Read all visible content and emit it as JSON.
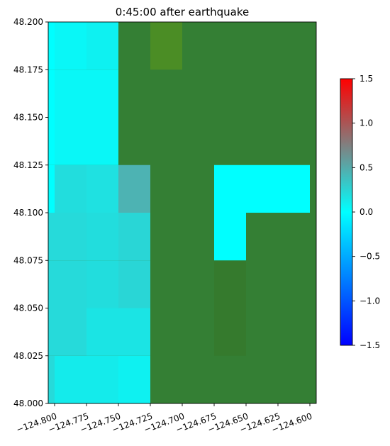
{
  "chart_data": {
    "type": "heatmap",
    "title": "0:45:00 after earthquake",
    "xlabel": "",
    "ylabel": "",
    "xlim": [
      -124.805,
      -124.595
    ],
    "ylim": [
      48.0,
      48.2
    ],
    "x_ticks": [
      -124.8,
      -124.775,
      -124.75,
      -124.725,
      -124.7,
      -124.675,
      -124.65,
      -124.625,
      -124.6
    ],
    "x_tick_labels": [
      "−124.800",
      "−124.775",
      "−124.750",
      "−124.725",
      "−124.700",
      "−124.675",
      "−124.650",
      "−124.625",
      "−124.600"
    ],
    "y_ticks": [
      48.0,
      48.025,
      48.05,
      48.075,
      48.1,
      48.125,
      48.15,
      48.175,
      48.2
    ],
    "y_tick_labels": [
      "48.000",
      "48.025",
      "48.050",
      "48.075",
      "48.100",
      "48.125",
      "48.150",
      "48.175",
      "48.200"
    ],
    "land_color": "#347f34",
    "colormap": {
      "name": "bwr-cyan",
      "stops": [
        {
          "value": -1.5,
          "color": "#0000ff"
        },
        {
          "value": 0.0,
          "color": "#00ffff"
        },
        {
          "value": 0.75,
          "color": "#808080"
        },
        {
          "value": 1.5,
          "color": "#ff0000"
        }
      ]
    },
    "colorbar": {
      "vmin": -1.5,
      "vmax": 1.5,
      "ticks": [
        -1.5,
        -1.0,
        -0.5,
        0.0,
        0.5,
        1.0,
        1.5
      ],
      "tick_labels": [
        "−1.5",
        "−1.0",
        "−0.5",
        "0.0",
        "0.5",
        "1.0",
        "1.5"
      ]
    },
    "cells": [
      {
        "x0": -124.805,
        "x1": -124.8,
        "y0": 48.0,
        "y1": 48.025,
        "value": 0.22
      },
      {
        "x0": -124.8,
        "x1": -124.775,
        "y0": 48.0,
        "y1": 48.025,
        "value": 0.12
      },
      {
        "x0": -124.775,
        "x1": -124.75,
        "y0": 48.0,
        "y1": 48.025,
        "value": 0.12
      },
      {
        "x0": -124.75,
        "x1": -124.725,
        "y0": 48.0,
        "y1": 48.025,
        "value": 0.08
      },
      {
        "x0": -124.805,
        "x1": -124.8,
        "y0": 48.025,
        "y1": 48.05,
        "value": 0.22
      },
      {
        "x0": -124.8,
        "x1": -124.775,
        "y0": 48.025,
        "y1": 48.05,
        "value": 0.22
      },
      {
        "x0": -124.775,
        "x1": -124.75,
        "y0": 48.025,
        "y1": 48.05,
        "value": 0.16
      },
      {
        "x0": -124.75,
        "x1": -124.725,
        "y0": 48.025,
        "y1": 48.05,
        "value": 0.16
      },
      {
        "x0": -124.805,
        "x1": -124.8,
        "y0": 48.05,
        "y1": 48.075,
        "value": 0.22
      },
      {
        "x0": -124.8,
        "x1": -124.775,
        "y0": 48.05,
        "y1": 48.075,
        "value": 0.22
      },
      {
        "x0": -124.775,
        "x1": -124.75,
        "y0": 48.05,
        "y1": 48.075,
        "value": 0.2
      },
      {
        "x0": -124.75,
        "x1": -124.725,
        "y0": 48.05,
        "y1": 48.075,
        "value": 0.24
      },
      {
        "x0": -124.805,
        "x1": -124.8,
        "y0": 48.075,
        "y1": 48.1,
        "value": 0.22
      },
      {
        "x0": -124.8,
        "x1": -124.775,
        "y0": 48.075,
        "y1": 48.1,
        "value": 0.22
      },
      {
        "x0": -124.775,
        "x1": -124.75,
        "y0": 48.075,
        "y1": 48.1,
        "value": 0.2
      },
      {
        "x0": -124.75,
        "x1": -124.725,
        "y0": 48.075,
        "y1": 48.1,
        "value": 0.24
      },
      {
        "x0": -124.805,
        "x1": -124.8,
        "y0": 48.1,
        "y1": 48.125,
        "value": 0.0
      },
      {
        "x0": -124.8,
        "x1": -124.775,
        "y0": 48.1,
        "y1": 48.125,
        "value": 0.2
      },
      {
        "x0": -124.775,
        "x1": -124.75,
        "y0": 48.1,
        "y1": 48.125,
        "value": 0.18
      },
      {
        "x0": -124.75,
        "x1": -124.725,
        "y0": 48.1,
        "y1": 48.125,
        "value": 0.45
      },
      {
        "x0": -124.805,
        "x1": -124.8,
        "y0": 48.125,
        "y1": 48.175,
        "value": 0.0
      },
      {
        "x0": -124.8,
        "x1": -124.775,
        "y0": 48.125,
        "y1": 48.175,
        "value": 0.05
      },
      {
        "x0": -124.775,
        "x1": -124.75,
        "y0": 48.125,
        "y1": 48.175,
        "value": 0.05
      },
      {
        "x0": -124.805,
        "x1": -124.8,
        "y0": 48.175,
        "y1": 48.2,
        "value": 0.0
      },
      {
        "x0": -124.8,
        "x1": -124.775,
        "y0": 48.175,
        "y1": 48.2,
        "value": 0.05
      },
      {
        "x0": -124.775,
        "x1": -124.75,
        "y0": 48.175,
        "y1": 48.2,
        "value": 0.08
      },
      {
        "x0": -124.675,
        "x1": -124.65,
        "y0": 48.075,
        "y1": 48.125,
        "value": 0.0
      },
      {
        "x0": -124.65,
        "x1": -124.625,
        "y0": 48.1,
        "y1": 48.125,
        "value": 0.0
      },
      {
        "x0": -124.625,
        "x1": -124.6,
        "y0": 48.1,
        "y1": 48.125,
        "value": 0.0
      }
    ],
    "land_cells": [
      {
        "x0": -124.725,
        "x1": -124.7,
        "y0": 48.175,
        "y1": 48.2,
        "color": "#4b8d25"
      },
      {
        "x0": -124.675,
        "x1": -124.65,
        "y0": 48.025,
        "y1": 48.05,
        "color": "#357a2d"
      },
      {
        "x0": -124.675,
        "x1": -124.65,
        "y0": 48.05,
        "y1": 48.075,
        "color": "#357a2d"
      }
    ]
  }
}
